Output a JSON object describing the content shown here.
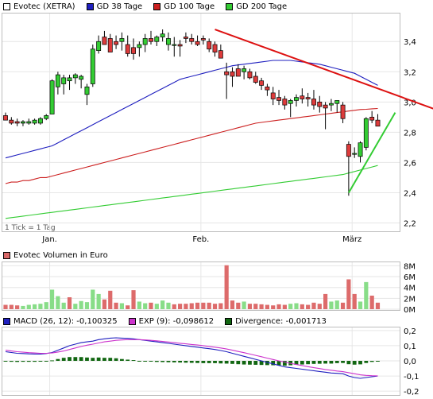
{
  "legend_main": [
    {
      "label": "Evotec (XETRA)",
      "color": "#ffffff"
    },
    {
      "label": "GD 38 Tage",
      "color": "#1f1fbf"
    },
    {
      "label": "GD 100 Tage",
      "color": "#cc2020"
    },
    {
      "label": "GD 200 Tage",
      "color": "#33cc33"
    }
  ],
  "legend_volume": [
    {
      "label": "Evotec Volumen in Euro",
      "color": "#d86868"
    }
  ],
  "legend_macd": [
    {
      "label": "MACD (26, 12): -0,100325",
      "color": "#1f1fbf"
    },
    {
      "label": "EXP (9): -0,098612",
      "color": "#cc33cc"
    },
    {
      "label": "Divergence: -0,001713",
      "color": "#116611"
    }
  ],
  "tick_note": "1 Tick = 1 Tag",
  "x_month_labels": [
    "Jan.",
    "Feb.",
    "März"
  ],
  "price_axis_labels": [
    "3,4",
    "3,2",
    "3,0",
    "2,8",
    "2,6",
    "2,4",
    "2,2"
  ],
  "volume_axis_labels": [
    "8M",
    "6M",
    "4M",
    "2M",
    "0M"
  ],
  "macd_axis_labels": [
    "0,2",
    "0,1",
    "0,0",
    "-0,1",
    "-0,2"
  ],
  "chart_data": [
    {
      "type": "candlestick",
      "title": "Evotec (XETRA)",
      "ylim": [
        2.15,
        3.58
      ],
      "y_ticks": [
        3.4,
        3.2,
        3.0,
        2.8,
        2.6,
        2.4,
        2.2
      ],
      "x_month_positions": {
        "Jan.": 8,
        "Feb.": 34,
        "März": 60
      },
      "candles": [
        [
          2.91,
          2.93,
          2.88,
          2.88
        ],
        [
          2.88,
          2.9,
          2.85,
          2.86
        ],
        [
          2.87,
          2.89,
          2.84,
          2.86
        ],
        [
          2.86,
          2.88,
          2.84,
          2.87
        ],
        [
          2.86,
          2.89,
          2.85,
          2.87
        ],
        [
          2.86,
          2.89,
          2.85,
          2.88
        ],
        [
          2.86,
          2.9,
          2.85,
          2.89
        ],
        [
          2.89,
          2.92,
          2.88,
          2.91
        ],
        [
          2.92,
          3.15,
          2.92,
          3.14
        ],
        [
          3.1,
          3.2,
          3.05,
          3.18
        ],
        [
          3.12,
          3.18,
          3.05,
          3.16
        ],
        [
          3.14,
          3.18,
          3.08,
          3.16
        ],
        [
          3.16,
          3.19,
          3.12,
          3.18
        ],
        [
          3.15,
          3.18,
          3.09,
          3.17
        ],
        [
          3.05,
          3.12,
          2.98,
          3.1
        ],
        [
          3.12,
          3.38,
          3.1,
          3.35
        ],
        [
          3.34,
          3.44,
          3.32,
          3.4
        ],
        [
          3.43,
          3.47,
          3.38,
          3.38
        ],
        [
          3.42,
          3.45,
          3.33,
          3.33
        ],
        [
          3.4,
          3.44,
          3.35,
          3.38
        ],
        [
          3.4,
          3.46,
          3.34,
          3.42
        ],
        [
          3.38,
          3.44,
          3.3,
          3.32
        ],
        [
          3.36,
          3.42,
          3.28,
          3.32
        ],
        [
          3.36,
          3.4,
          3.3,
          3.38
        ],
        [
          3.38,
          3.45,
          3.33,
          3.42
        ],
        [
          3.42,
          3.47,
          3.38,
          3.4
        ],
        [
          3.4,
          3.44,
          3.37,
          3.43
        ],
        [
          3.43,
          3.48,
          3.4,
          3.45
        ],
        [
          3.38,
          3.46,
          3.34,
          3.42
        ],
        [
          3.38,
          3.43,
          3.3,
          3.38
        ],
        [
          3.38,
          3.41,
          3.3,
          3.37
        ],
        [
          3.43,
          3.46,
          3.39,
          3.42
        ],
        [
          3.42,
          3.45,
          3.38,
          3.4
        ],
        [
          3.4,
          3.44,
          3.37,
          3.38
        ],
        [
          3.42,
          3.44,
          3.38,
          3.41
        ],
        [
          3.4,
          3.42,
          3.33,
          3.35
        ],
        [
          3.38,
          3.4,
          3.3,
          3.33
        ],
        [
          3.34,
          3.38,
          3.29,
          3.29
        ],
        [
          3.2,
          3.26,
          3.02,
          3.18
        ],
        [
          3.2,
          3.23,
          3.1,
          3.17
        ],
        [
          3.22,
          3.25,
          3.17,
          3.17
        ],
        [
          3.2,
          3.24,
          3.15,
          3.22
        ],
        [
          3.2,
          3.22,
          3.15,
          3.16
        ],
        [
          3.17,
          3.2,
          3.12,
          3.13
        ],
        [
          3.14,
          3.16,
          3.08,
          3.11
        ],
        [
          3.1,
          3.12,
          3.04,
          3.08
        ],
        [
          3.06,
          3.1,
          2.98,
          3.02
        ],
        [
          3.03,
          3.08,
          2.98,
          3.01
        ],
        [
          3.02,
          3.04,
          2.95,
          2.98
        ],
        [
          2.99,
          3.02,
          2.9,
          3.01
        ],
        [
          3.01,
          3.05,
          2.97,
          3.03
        ],
        [
          3.04,
          3.09,
          2.99,
          3.02
        ],
        [
          3.03,
          3.06,
          2.97,
          3.02
        ],
        [
          3.02,
          3.08,
          2.95,
          2.98
        ],
        [
          3.0,
          3.04,
          2.93,
          2.97
        ],
        [
          2.98,
          3.0,
          2.82,
          2.96
        ],
        [
          2.98,
          3.02,
          2.94,
          2.99
        ],
        [
          2.99,
          3.01,
          2.93,
          3.01
        ],
        [
          2.98,
          3.0,
          2.86,
          2.89
        ],
        [
          2.72,
          2.74,
          2.38,
          2.64
        ],
        [
          2.66,
          2.7,
          2.63,
          2.66
        ],
        [
          2.64,
          2.74,
          2.6,
          2.73
        ],
        [
          2.7,
          2.9,
          2.68,
          2.89
        ],
        [
          2.9,
          2.94,
          2.86,
          2.88
        ],
        [
          2.88,
          2.92,
          2.84,
          2.84
        ]
      ],
      "series": [
        {
          "name": "GD 38 Tage",
          "color": "#1f1fbf",
          "values": [
            2.63,
            2.64,
            2.65,
            2.66,
            2.67,
            2.68,
            2.69,
            2.7,
            2.71,
            2.73,
            2.75,
            2.77,
            2.79,
            2.81,
            2.83,
            2.85,
            2.87,
            2.89,
            2.91,
            2.93,
            2.95,
            2.97,
            2.99,
            3.01,
            3.03,
            3.05,
            3.07,
            3.09,
            3.11,
            3.13,
            3.15,
            3.16,
            3.17,
            3.18,
            3.19,
            3.2,
            3.21,
            3.22,
            3.23,
            3.24,
            3.245,
            3.25,
            3.255,
            3.26,
            3.265,
            3.27,
            3.275,
            3.275,
            3.275,
            3.275,
            3.27,
            3.265,
            3.26,
            3.255,
            3.25,
            3.24,
            3.23,
            3.22,
            3.21,
            3.2,
            3.19,
            3.17,
            3.15,
            3.13,
            3.11
          ]
        },
        {
          "name": "GD 100 Tage",
          "color": "#cc2020",
          "values": [
            2.46,
            2.47,
            2.47,
            2.48,
            2.48,
            2.49,
            2.5,
            2.5,
            2.51,
            2.52,
            2.53,
            2.54,
            2.55,
            2.56,
            2.57,
            2.58,
            2.59,
            2.6,
            2.61,
            2.62,
            2.63,
            2.64,
            2.65,
            2.66,
            2.67,
            2.68,
            2.69,
            2.7,
            2.71,
            2.72,
            2.73,
            2.74,
            2.75,
            2.76,
            2.77,
            2.78,
            2.79,
            2.8,
            2.81,
            2.82,
            2.83,
            2.84,
            2.85,
            2.86,
            2.865,
            2.87,
            2.875,
            2.88,
            2.885,
            2.89,
            2.895,
            2.9,
            2.905,
            2.91,
            2.915,
            2.92,
            2.925,
            2.93,
            2.935,
            2.94,
            2.945,
            2.95,
            2.952,
            2.955,
            2.957
          ]
        },
        {
          "name": "GD 200 Tage",
          "color": "#33cc33",
          "values": [
            2.23,
            2.235,
            2.24,
            2.245,
            2.25,
            2.255,
            2.26,
            2.265,
            2.27,
            2.275,
            2.28,
            2.285,
            2.29,
            2.295,
            2.3,
            2.305,
            2.31,
            2.315,
            2.32,
            2.325,
            2.33,
            2.335,
            2.34,
            2.345,
            2.35,
            2.355,
            2.36,
            2.365,
            2.37,
            2.375,
            2.38,
            2.385,
            2.39,
            2.395,
            2.4,
            2.405,
            2.41,
            2.415,
            2.42,
            2.425,
            2.43,
            2.435,
            2.44,
            2.445,
            2.45,
            2.455,
            2.46,
            2.465,
            2.47,
            2.475,
            2.48,
            2.485,
            2.49,
            2.495,
            2.5,
            2.505,
            2.51,
            2.515,
            2.52,
            2.53,
            2.54,
            2.55,
            2.56,
            2.57,
            2.58
          ]
        }
      ],
      "trendlines": [
        {
          "name": "resistance",
          "color": "#dd1111",
          "from": [
            36,
            3.48
          ],
          "to": [
            79,
            2.88
          ]
        },
        {
          "name": "support",
          "color": "#33cc33",
          "from": [
            59,
            2.4
          ],
          "to": [
            67,
            2.93
          ]
        }
      ]
    },
    {
      "type": "bar",
      "title": "Evotec Volumen in Euro",
      "ylim": [
        0,
        8.5
      ],
      "y_unit": "M",
      "values": [
        0.8,
        0.8,
        0.7,
        0.6,
        0.8,
        0.9,
        1.0,
        1.3,
        3.6,
        2.4,
        1.2,
        2.2,
        1.0,
        1.5,
        1.3,
        3.6,
        2.8,
        1.8,
        3.4,
        1.2,
        1.1,
        0.7,
        3.5,
        1.4,
        1.1,
        1.2,
        1.0,
        1.6,
        1.2,
        0.9,
        1.0,
        1.0,
        1.1,
        1.2,
        1.2,
        1.2,
        1.0,
        1.1,
        8.1,
        1.6,
        1.2,
        1.4,
        1.0,
        1.0,
        0.9,
        0.8,
        0.7,
        0.9,
        0.8,
        1.0,
        1.1,
        0.9,
        0.8,
        1.2,
        1.0,
        2.8,
        1.4,
        1.6,
        1.2,
        5.5,
        2.8,
        1.4,
        5.0,
        2.5,
        1.2
      ],
      "up_color": "#88dd88",
      "down_color": "#dd6b6b",
      "neutral_color": "#c0c0c0",
      "directions": [
        "d",
        "d",
        "d",
        "u",
        "u",
        "u",
        "u",
        "u",
        "u",
        "u",
        "u",
        "d",
        "u",
        "u",
        "u",
        "u",
        "u",
        "d",
        "d",
        "d",
        "u",
        "d",
        "d",
        "u",
        "u",
        "d",
        "u",
        "u",
        "u",
        "d",
        "d",
        "d",
        "d",
        "d",
        "d",
        "d",
        "d",
        "d",
        "d",
        "d",
        "d",
        "u",
        "d",
        "d",
        "d",
        "d",
        "d",
        "d",
        "d",
        "u",
        "u",
        "d",
        "d",
        "d",
        "d",
        "d",
        "u",
        "u",
        "d",
        "d",
        "d",
        "u",
        "u",
        "d",
        "d"
      ]
    },
    {
      "type": "line",
      "title": "MACD",
      "ylim": [
        -0.22,
        0.22
      ],
      "series": [
        {
          "name": "MACD (26, 12)",
          "color": "#1f1fbf",
          "values": [
            0.06,
            0.055,
            0.05,
            0.048,
            0.046,
            0.045,
            0.045,
            0.048,
            0.055,
            0.07,
            0.085,
            0.1,
            0.11,
            0.12,
            0.125,
            0.13,
            0.14,
            0.145,
            0.15,
            0.152,
            0.15,
            0.148,
            0.145,
            0.14,
            0.135,
            0.13,
            0.125,
            0.12,
            0.115,
            0.11,
            0.105,
            0.1,
            0.095,
            0.09,
            0.085,
            0.08,
            0.075,
            0.068,
            0.06,
            0.05,
            0.04,
            0.03,
            0.02,
            0.01,
            0.0,
            -0.01,
            -0.02,
            -0.03,
            -0.04,
            -0.045,
            -0.05,
            -0.055,
            -0.06,
            -0.065,
            -0.07,
            -0.075,
            -0.08,
            -0.082,
            -0.085,
            -0.1,
            -0.11,
            -0.115,
            -0.11,
            -0.105,
            -0.1
          ]
        },
        {
          "name": "EXP (9)",
          "color": "#cc33cc",
          "values": [
            0.07,
            0.065,
            0.06,
            0.057,
            0.054,
            0.052,
            0.05,
            0.05,
            0.052,
            0.058,
            0.065,
            0.075,
            0.085,
            0.095,
            0.103,
            0.11,
            0.118,
            0.125,
            0.13,
            0.135,
            0.138,
            0.14,
            0.14,
            0.14,
            0.138,
            0.135,
            0.132,
            0.128,
            0.124,
            0.12,
            0.116,
            0.112,
            0.108,
            0.104,
            0.1,
            0.095,
            0.09,
            0.085,
            0.078,
            0.07,
            0.062,
            0.054,
            0.045,
            0.036,
            0.027,
            0.018,
            0.009,
            0.0,
            -0.008,
            -0.016,
            -0.024,
            -0.031,
            -0.038,
            -0.045,
            -0.051,
            -0.057,
            -0.062,
            -0.067,
            -0.071,
            -0.078,
            -0.085,
            -0.092,
            -0.096,
            -0.098,
            -0.099
          ]
        }
      ],
      "divergence": {
        "name": "Divergence",
        "color": "#116611",
        "values": [
          -0.005,
          -0.006,
          -0.007,
          -0.006,
          -0.006,
          -0.006,
          -0.005,
          -0.003,
          0.003,
          0.012,
          0.02,
          0.025,
          0.025,
          0.025,
          0.022,
          0.02,
          0.022,
          0.02,
          0.02,
          0.017,
          0.012,
          0.008,
          0.005,
          0.0,
          -0.003,
          -0.005,
          -0.007,
          -0.008,
          -0.009,
          -0.01,
          -0.011,
          -0.012,
          -0.013,
          -0.014,
          -0.015,
          -0.015,
          -0.015,
          -0.017,
          -0.018,
          -0.02,
          -0.022,
          -0.024,
          -0.025,
          -0.026,
          -0.027,
          -0.028,
          -0.029,
          -0.03,
          -0.032,
          -0.029,
          -0.026,
          -0.024,
          -0.022,
          -0.02,
          -0.019,
          -0.018,
          -0.018,
          -0.015,
          -0.014,
          -0.022,
          -0.025,
          -0.023,
          -0.014,
          -0.007,
          -0.002
        ]
      }
    }
  ]
}
